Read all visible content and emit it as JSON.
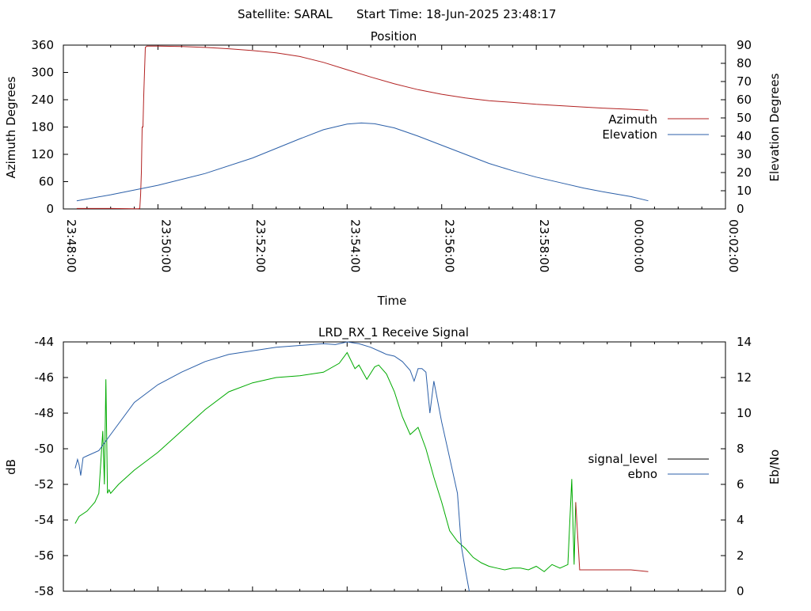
{
  "header": {
    "satellite_text": "Satellite: SARAL",
    "start_time_text": "Start Time: 18-Jun-2025 23:48:17"
  },
  "colors": {
    "azimuth": "#b22222",
    "elevation": "#2b5fa8",
    "signal_level": "#b22222",
    "ebno_left_part": "#00aa00",
    "ebno": "#2b5fa8"
  },
  "chart_data": [
    {
      "type": "line",
      "title": "Position",
      "xlabel": "Time",
      "ylabel": "Azimuth Degrees",
      "y2label": "Elevation Degrees",
      "xlim_seconds": [
        0,
        840
      ],
      "x_ticks": [
        "23:48:00",
        "23:50:00",
        "23:52:00",
        "23:54:00",
        "23:56:00",
        "23:58:00",
        "00:00:00",
        "00:02:00"
      ],
      "ylim": [
        0,
        360
      ],
      "y_ticks": [
        "0",
        "60",
        "120",
        "180",
        "240",
        "300",
        "360"
      ],
      "y2lim": [
        0,
        90
      ],
      "y2_ticks": [
        "0",
        "10",
        "20",
        "30",
        "40",
        "50",
        "60",
        "70",
        "80",
        "90"
      ],
      "legend_position": "right",
      "series": [
        {
          "name": "Azimuth",
          "axis": "left",
          "x": [
            17,
            30,
            60,
            90,
            95,
            97,
            98,
            99,
            100,
            101,
            102,
            104,
            106,
            110,
            120,
            150,
            180,
            210,
            240,
            270,
            300,
            330,
            360,
            390,
            420,
            450,
            480,
            510,
            540,
            570,
            600,
            630,
            660,
            690,
            720,
            742
          ],
          "values": [
            1,
            1,
            1,
            0.5,
            0.5,
            1,
            30,
            80,
            180,
            180,
            250,
            355,
            358,
            358,
            358,
            357,
            355,
            352,
            348,
            343,
            335,
            322,
            306,
            290,
            275,
            262,
            252,
            244,
            238,
            234,
            230,
            227,
            224,
            221,
            219,
            217
          ]
        },
        {
          "name": "Elevation",
          "axis": "right",
          "x": [
            17,
            60,
            120,
            180,
            240,
            300,
            330,
            360,
            378,
            395,
            420,
            450,
            480,
            510,
            540,
            570,
            600,
            630,
            660,
            690,
            720,
            742
          ],
          "values": [
            4.5,
            7.8,
            13,
            19.5,
            28,
            38.5,
            43.5,
            46.6,
            47.2,
            46.8,
            44.5,
            40,
            35,
            30,
            25,
            21,
            17.5,
            14.5,
            11.5,
            9,
            6.8,
            4.5
          ]
        }
      ]
    },
    {
      "type": "line",
      "title": "LRD_RX_1 Receive Signal",
      "ylabel": "dB",
      "y2label": "Eb/No",
      "xlim_seconds": [
        0,
        840
      ],
      "ylim": [
        -58,
        -44
      ],
      "y_ticks": [
        "-44",
        "-46",
        "-48",
        "-50",
        "-52",
        "-54",
        "-56",
        "-58"
      ],
      "y2lim": [
        0,
        14
      ],
      "y2_ticks": [
        "0",
        "2",
        "4",
        "6",
        "8",
        "10",
        "12",
        "14"
      ],
      "legend_position": "right",
      "series": [
        {
          "name": "signal_level",
          "axis": "left",
          "x": [
            15,
            20,
            30,
            40,
            45,
            50,
            52,
            54,
            56,
            58,
            60,
            70,
            90,
            120,
            150,
            180,
            210,
            240,
            270,
            300,
            330,
            350,
            360,
            370,
            375,
            385,
            395,
            400,
            410,
            420,
            430,
            440,
            450,
            460,
            470,
            480,
            490,
            500,
            510,
            520,
            530,
            540,
            550,
            560,
            570,
            580,
            590,
            600,
            610,
            620,
            630,
            640,
            645,
            648,
            650,
            655,
            660,
            680,
            700,
            720,
            742
          ],
          "values": [
            -54.2,
            -53.8,
            -53.5,
            -53,
            -52.5,
            -49,
            -52,
            -46.1,
            -52.5,
            -52.3,
            -52.5,
            -52,
            -51.2,
            -50.2,
            -49,
            -47.8,
            -46.8,
            -46.3,
            -46,
            -45.9,
            -45.7,
            -45.2,
            -44.6,
            -45.5,
            -45.3,
            -46.1,
            -45.4,
            -45.3,
            -45.8,
            -46.8,
            -48.2,
            -49.2,
            -48.8,
            -50,
            -51.6,
            -53,
            -54.6,
            -55.2,
            -55.6,
            -56.1,
            -56.4,
            -56.6,
            -56.7,
            -56.8,
            -56.7,
            -56.7,
            -56.8,
            -56.6,
            -56.9,
            -56.5,
            -56.7,
            -56.5,
            -51.7,
            -56.5,
            -53,
            -56.8,
            -56.8,
            -56.8,
            -56.8,
            -56.8,
            -56.9
          ]
        },
        {
          "name": "ebno",
          "axis": "right",
          "x": [
            15,
            18,
            20,
            22,
            25,
            30,
            45,
            60,
            90,
            120,
            150,
            180,
            210,
            240,
            270,
            300,
            330,
            345,
            360,
            375,
            390,
            405,
            410,
            420,
            430,
            440,
            445,
            450,
            455,
            460,
            465,
            470,
            480,
            490,
            500,
            505,
            510,
            515
          ],
          "values": [
            6.9,
            7.4,
            7.1,
            6.5,
            7.5,
            7.6,
            7.9,
            8.8,
            10.6,
            11.6,
            12.3,
            12.9,
            13.3,
            13.5,
            13.7,
            13.8,
            13.9,
            13.85,
            14,
            13.9,
            13.7,
            13.4,
            13.3,
            13.2,
            12.9,
            12.4,
            11.8,
            12.5,
            12.5,
            12.3,
            10,
            11.8,
            9.5,
            7.5,
            5.5,
            2.5,
            1.2,
            0
          ]
        }
      ]
    }
  ]
}
